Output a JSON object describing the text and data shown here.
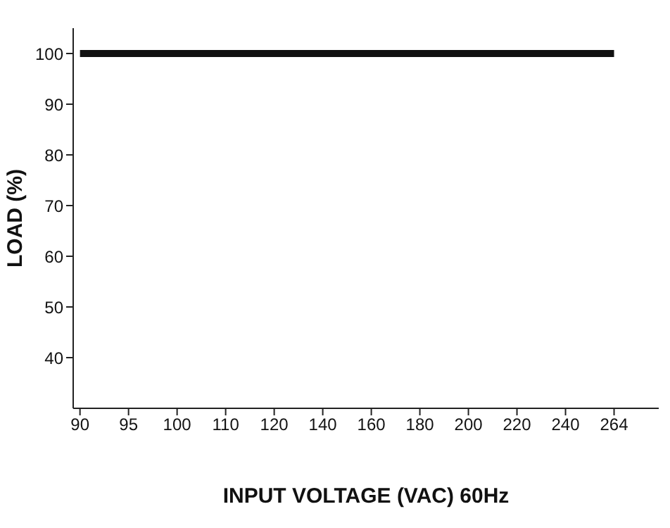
{
  "chart_data": {
    "type": "line",
    "xlabel": "INPUT VOLTAGE (VAC) 60Hz",
    "ylabel": "LOAD (%)",
    "categories": [
      "90",
      "95",
      "100",
      "110",
      "120",
      "140",
      "160",
      "180",
      "200",
      "220",
      "240",
      "264"
    ],
    "series": [
      {
        "color": "#111111",
        "values": [
          100,
          100,
          100,
          100,
          100,
          100,
          100,
          100,
          100,
          100,
          100,
          100
        ]
      }
    ],
    "ylim": [
      30,
      105
    ],
    "yticks": [
      40,
      50,
      60,
      70,
      80,
      90,
      100
    ],
    "grid": false,
    "legend": false,
    "marker": "none",
    "line_style": "solid"
  }
}
